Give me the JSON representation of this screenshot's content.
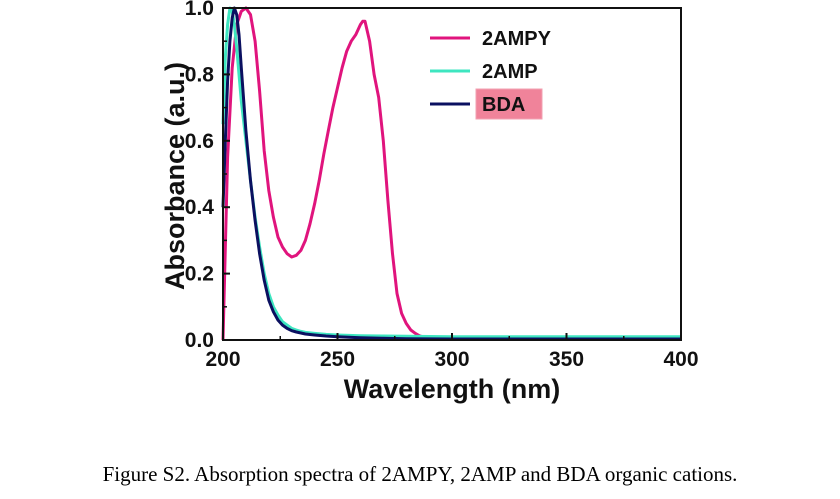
{
  "caption": "Figure S2. Absorption spectra of 2AMPY, 2AMP and BDA organic cations.",
  "chart_data": {
    "type": "line",
    "xlabel": "Wavelength (nm)",
    "ylabel": "Absorbance (a.u.)",
    "xlim": [
      200,
      400
    ],
    "ylim": [
      0,
      1.0
    ],
    "xticks": [
      "200",
      "250",
      "300",
      "350",
      "400"
    ],
    "yticks": [
      "0.0",
      "0.2",
      "0.4",
      "0.6",
      "0.8",
      "1.0"
    ],
    "legend_position": "top-right",
    "series": [
      {
        "name": "2AMPY",
        "color": "#e0147d",
        "x": [
          200,
          202,
          204,
          206,
          208,
          210,
          212,
          214,
          216,
          218,
          220,
          222,
          224,
          226,
          228,
          230,
          232,
          234,
          236,
          238,
          240,
          242,
          244,
          246,
          248,
          250,
          252,
          254,
          256,
          258,
          260,
          261,
          262,
          264,
          266,
          268,
          270,
          272,
          274,
          276,
          278,
          280,
          282,
          284,
          286,
          288,
          290,
          292,
          295,
          300,
          320,
          350,
          400
        ],
        "y": [
          0.0,
          0.55,
          0.82,
          0.95,
          0.99,
          1.0,
          0.98,
          0.9,
          0.75,
          0.57,
          0.45,
          0.37,
          0.31,
          0.28,
          0.26,
          0.25,
          0.255,
          0.27,
          0.3,
          0.35,
          0.41,
          0.48,
          0.56,
          0.63,
          0.7,
          0.76,
          0.82,
          0.87,
          0.9,
          0.92,
          0.95,
          0.96,
          0.96,
          0.9,
          0.8,
          0.73,
          0.6,
          0.42,
          0.26,
          0.14,
          0.08,
          0.05,
          0.03,
          0.02,
          0.012,
          0.008,
          0.005,
          0.004,
          0.003,
          0.002,
          0.002,
          0.002,
          0.002
        ]
      },
      {
        "name": "2AMP",
        "color": "#3ee6c0",
        "x": [
          200,
          201,
          202,
          203,
          204,
          205,
          206,
          207,
          208,
          210,
          212,
          214,
          216,
          218,
          220,
          222,
          224,
          226,
          228,
          230,
          232,
          234,
          236,
          240,
          245,
          250,
          260,
          270,
          280,
          300,
          350,
          400
        ],
        "y": [
          0.65,
          0.85,
          0.95,
          1.0,
          0.99,
          0.95,
          0.88,
          0.8,
          0.72,
          0.6,
          0.48,
          0.37,
          0.28,
          0.2,
          0.14,
          0.1,
          0.075,
          0.055,
          0.045,
          0.035,
          0.03,
          0.026,
          0.023,
          0.02,
          0.017,
          0.015,
          0.013,
          0.012,
          0.011,
          0.01,
          0.01,
          0.01
        ]
      },
      {
        "name": "BDA",
        "color": "#0b1060",
        "x": [
          200,
          201,
          202,
          203,
          204,
          205,
          206,
          207,
          208,
          210,
          212,
          214,
          216,
          218,
          220,
          222,
          224,
          226,
          228,
          230,
          232,
          234,
          236,
          240,
          245,
          250,
          260,
          270,
          280,
          300,
          350,
          400
        ],
        "y": [
          0.4,
          0.6,
          0.78,
          0.9,
          0.97,
          1.0,
          0.98,
          0.92,
          0.82,
          0.63,
          0.48,
          0.36,
          0.26,
          0.18,
          0.12,
          0.085,
          0.06,
          0.045,
          0.035,
          0.028,
          0.024,
          0.021,
          0.018,
          0.015,
          0.012,
          0.01,
          0.007,
          0.005,
          0.004,
          0.003,
          0.003,
          0.003
        ]
      }
    ]
  }
}
